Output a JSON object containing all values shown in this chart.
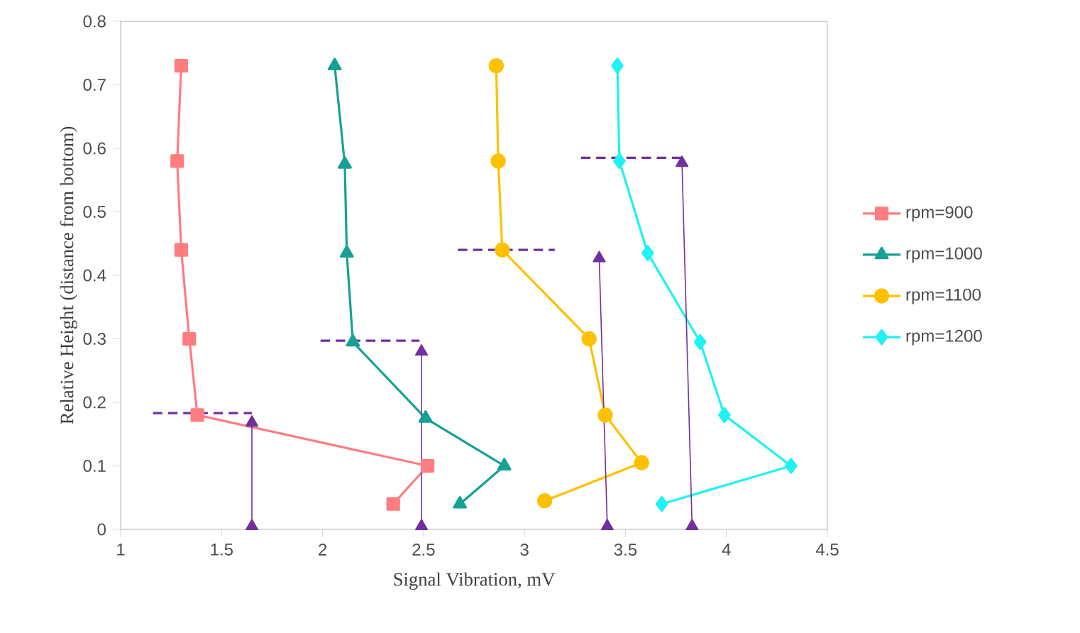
{
  "chart_data": {
    "type": "line",
    "xlabel": "Signal Vibration, mV",
    "ylabel": "Relative Height (distance from bottom)",
    "xlim": [
      1,
      4.5
    ],
    "ylim": [
      0,
      0.8
    ],
    "xticks": [
      1,
      1.5,
      2,
      2.5,
      3,
      3.5,
      4,
      4.5
    ],
    "yticks": [
      0,
      0.1,
      0.2,
      0.3,
      0.4,
      0.5,
      0.6,
      0.7,
      0.8
    ],
    "grid": false,
    "legend": "right",
    "series": [
      {
        "name": "rpm=900",
        "color": "#ff7c80",
        "marker": "square",
        "x": [
          1.3,
          1.28,
          1.3,
          1.34,
          1.38,
          2.52,
          2.35
        ],
        "values": [
          0.73,
          0.58,
          0.44,
          0.3,
          0.18,
          0.1,
          0.04
        ]
      },
      {
        "name": "rpm=1000",
        "color": "#17a096",
        "marker": "triangle",
        "x": [
          2.06,
          2.11,
          2.12,
          2.15,
          2.51,
          2.9,
          2.68
        ],
        "values": [
          0.73,
          0.575,
          0.435,
          0.295,
          0.175,
          0.1,
          0.04
        ]
      },
      {
        "name": "rpm=1100",
        "color": "#ffc000",
        "marker": "circle",
        "x": [
          2.86,
          2.87,
          2.89,
          3.32,
          3.4,
          3.58,
          3.1
        ],
        "values": [
          0.73,
          0.58,
          0.44,
          0.3,
          0.18,
          0.105,
          0.045
        ]
      },
      {
        "name": "rpm=1200",
        "color": "#1ef2f2",
        "marker": "diamond",
        "x": [
          3.46,
          3.47,
          3.61,
          3.87,
          3.99,
          4.32,
          3.68
        ],
        "values": [
          0.73,
          0.58,
          0.435,
          0.295,
          0.18,
          0.1,
          0.04
        ]
      },
      {
        "color": "#7030a0",
        "marker": "none",
        "line_style": "dashed",
        "x": [
          1.16,
          1.65
        ],
        "values": [
          0.183,
          0.183
        ]
      },
      {
        "color": "#7030a0",
        "marker": "none",
        "line_style": "dashed",
        "x": [
          1.99,
          2.48
        ],
        "values": [
          0.297,
          0.297
        ]
      },
      {
        "color": "#7030a0",
        "marker": "none",
        "line_style": "dashed",
        "x": [
          2.67,
          3.15
        ],
        "values": [
          0.44,
          0.44
        ]
      },
      {
        "color": "#7030a0",
        "marker": "none",
        "line_style": "dashed",
        "x": [
          3.28,
          3.8
        ],
        "values": [
          0.585,
          0.585
        ]
      },
      {
        "color": "#7030a0",
        "marker": "triangle",
        "x": [
          1.65,
          1.65
        ],
        "values": [
          0.168,
          0.005
        ]
      },
      {
        "color": "#7030a0",
        "marker": "triangle",
        "x": [
          2.49,
          2.49
        ],
        "values": [
          0.28,
          0.005
        ]
      },
      {
        "color": "#7030a0",
        "marker": "triangle",
        "x": [
          3.37,
          3.41
        ],
        "values": [
          0.427,
          0.005
        ]
      },
      {
        "color": "#7030a0",
        "marker": "triangle",
        "x": [
          3.78,
          3.83
        ],
        "values": [
          0.577,
          0.005
        ]
      }
    ]
  }
}
